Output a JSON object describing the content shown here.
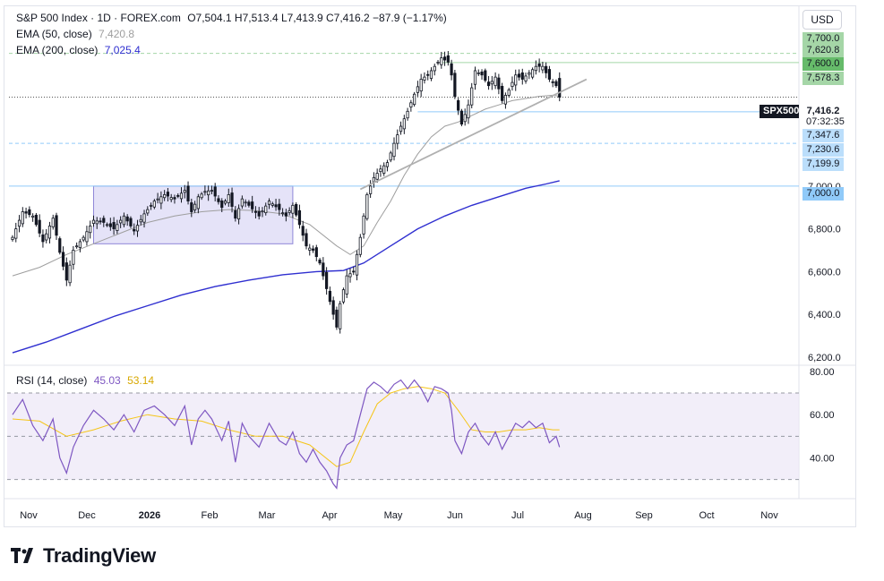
{
  "header": {
    "symbol": "S&P 500 Index · 1D · FOREX.com",
    "ohlc": "O7,504.1  H7,513.4  L7,413.9  C7,416.2  −87.9 (−1.17%)",
    "ema50_label": "EMA (50, close)",
    "ema50_value": "7,420.8",
    "ema200_label": "EMA (200, close)",
    "ema200_value": "7,025.4"
  },
  "currency_button": "USD",
  "colors": {
    "up": "#131722",
    "ema50": "#9e9e9e",
    "ema200": "#2f2fd0",
    "rsi": "#7e57c2",
    "rsi_ma": "#f5c518",
    "support_line": "#90caf9",
    "resistance_line": "#a5d6a7",
    "box_fill": "#dcd9f5"
  },
  "price_tags": [
    {
      "text": "7,700.0",
      "value": 7700,
      "style": "green"
    },
    {
      "text": "7,620.8",
      "value": 7620.8,
      "style": "green"
    },
    {
      "text": "7,600.0",
      "value": 7600,
      "style": "green-strong"
    },
    {
      "text": "7,578.3",
      "value": 7578.3,
      "style": "green"
    },
    {
      "text": "SPX500",
      "value": 7416.2,
      "style": "dark-symbol"
    },
    {
      "text": "7,416.2",
      "value": 7416.2,
      "style": "plain-bold"
    },
    {
      "text": "07:32:35",
      "value": 7380,
      "style": "plain"
    },
    {
      "text": "7,347.6",
      "value": 7347.6,
      "style": "blue"
    },
    {
      "text": "7,230.6",
      "value": 7230.6,
      "style": "blue"
    },
    {
      "text": "7,199.9",
      "value": 7199.9,
      "style": "blue"
    },
    {
      "text": "7,000.0",
      "value": 7000,
      "style": "blue-strong"
    }
  ],
  "rsi_legend": {
    "label": "RSI (14, close)",
    "value": "45.03",
    "ma_value": "53.14"
  },
  "logo_text": "TradingView",
  "chart_data": [
    {
      "type": "candlestick",
      "x_ticks": [
        "Nov",
        "Dec",
        "2026",
        "Feb",
        "Mar",
        "Apr",
        "May",
        "Jun",
        "Jul",
        "Aug",
        "Sep",
        "Oct",
        "Nov"
      ],
      "y_ticks": [
        "6,200.0",
        "6,400.0",
        "6,600.0",
        "6,800.0",
        "7,000.0"
      ],
      "y_tick_values": [
        6200,
        6400,
        6600,
        6800,
        7000
      ],
      "ylim": [
        6170,
        7720
      ],
      "last": {
        "open": 7504.1,
        "high": 7513.4,
        "low": 7413.9,
        "close": 7416.2
      },
      "price_path": [
        [
          0,
          6760
        ],
        [
          3,
          6880
        ],
        [
          6,
          6860
        ],
        [
          9,
          6740
        ],
        [
          12,
          6850
        ],
        [
          14,
          6690
        ],
        [
          16,
          6560
        ],
        [
          18,
          6700
        ],
        [
          21,
          6760
        ],
        [
          24,
          6840
        ],
        [
          27,
          6830
        ],
        [
          30,
          6800
        ],
        [
          33,
          6860
        ],
        [
          36,
          6790
        ],
        [
          39,
          6870
        ],
        [
          42,
          6930
        ],
        [
          45,
          6960
        ],
        [
          48,
          6940
        ],
        [
          51,
          6980
        ],
        [
          53,
          6880
        ],
        [
          55,
          6950
        ],
        [
          57,
          6975
        ],
        [
          59,
          6980
        ],
        [
          62,
          6900
        ],
        [
          64,
          6960
        ],
        [
          66,
          6850
        ],
        [
          68,
          6940
        ],
        [
          70,
          6910
        ],
        [
          73,
          6860
        ],
        [
          76,
          6930
        ],
        [
          79,
          6890
        ],
        [
          81,
          6860
        ],
        [
          83,
          6910
        ],
        [
          85,
          6820
        ],
        [
          87,
          6720
        ],
        [
          89,
          6700
        ],
        [
          91,
          6640
        ],
        [
          93,
          6520
        ],
        [
          95,
          6400
        ],
        [
          96,
          6340
        ],
        [
          97,
          6450
        ],
        [
          99,
          6580
        ],
        [
          101,
          6600
        ],
        [
          103,
          6760
        ],
        [
          105,
          6960
        ],
        [
          107,
          7040
        ],
        [
          109,
          7080
        ],
        [
          111,
          7110
        ],
        [
          113,
          7200
        ],
        [
          115,
          7280
        ],
        [
          117,
          7350
        ],
        [
          119,
          7430
        ],
        [
          121,
          7500
        ],
        [
          123,
          7520
        ],
        [
          125,
          7560
        ],
        [
          127,
          7600
        ],
        [
          129,
          7580
        ],
        [
          130,
          7520
        ],
        [
          131,
          7420
        ],
        [
          133,
          7290
        ],
        [
          135,
          7380
        ],
        [
          137,
          7540
        ],
        [
          139,
          7520
        ],
        [
          141,
          7470
        ],
        [
          143,
          7510
        ],
        [
          145,
          7400
        ],
        [
          147,
          7450
        ],
        [
          149,
          7520
        ],
        [
          151,
          7500
        ],
        [
          153,
          7530
        ],
        [
          155,
          7560
        ],
        [
          157,
          7560
        ],
        [
          159,
          7500
        ],
        [
          161,
          7470
        ],
        [
          162,
          7416
        ]
      ],
      "total_bars": 163,
      "ema50": [
        [
          0,
          6580
        ],
        [
          8,
          6620
        ],
        [
          16,
          6680
        ],
        [
          24,
          6730
        ],
        [
          32,
          6780
        ],
        [
          40,
          6830
        ],
        [
          48,
          6860
        ],
        [
          56,
          6880
        ],
        [
          64,
          6890
        ],
        [
          72,
          6885
        ],
        [
          80,
          6870
        ],
        [
          88,
          6820
        ],
        [
          96,
          6720
        ],
        [
          100,
          6680
        ],
        [
          104,
          6720
        ],
        [
          108,
          6830
        ],
        [
          112,
          6930
        ],
        [
          116,
          7050
        ],
        [
          120,
          7150
        ],
        [
          124,
          7230
        ],
        [
          128,
          7280
        ],
        [
          132,
          7300
        ],
        [
          136,
          7330
        ],
        [
          140,
          7360
        ],
        [
          144,
          7380
        ],
        [
          148,
          7400
        ],
        [
          152,
          7410
        ],
        [
          156,
          7420
        ],
        [
          160,
          7425
        ],
        [
          162,
          7421
        ]
      ],
      "ema200": [
        [
          0,
          6220
        ],
        [
          10,
          6270
        ],
        [
          20,
          6330
        ],
        [
          30,
          6390
        ],
        [
          40,
          6440
        ],
        [
          50,
          6490
        ],
        [
          60,
          6530
        ],
        [
          70,
          6560
        ],
        [
          80,
          6585
        ],
        [
          90,
          6600
        ],
        [
          98,
          6605
        ],
        [
          104,
          6640
        ],
        [
          112,
          6720
        ],
        [
          120,
          6800
        ],
        [
          128,
          6860
        ],
        [
          136,
          6910
        ],
        [
          144,
          6950
        ],
        [
          152,
          6990
        ],
        [
          158,
          7010
        ],
        [
          162,
          7025
        ]
      ],
      "trendline": {
        "from": [
          103,
          6985
        ],
        "to": [
          170,
          7500
        ]
      },
      "consolidation_box": {
        "x_from": 24,
        "x_to": 83,
        "y_from": 6730,
        "y_to": 7000
      },
      "horizontal_levels": [
        {
          "value": 7620.8,
          "kind": "resistance-dashed"
        },
        {
          "value": 7578.3,
          "kind": "resistance"
        },
        {
          "value": 7347.6,
          "kind": "support"
        },
        {
          "value": 7199.9,
          "kind": "support-dashed"
        },
        {
          "value": 7000.0,
          "kind": "support"
        },
        {
          "value": 7416.2,
          "kind": "last-price-dotted"
        }
      ]
    },
    {
      "type": "line",
      "title": "RSI (14, close)",
      "y_ticks": [
        "80.00",
        "60.00",
        "40.00"
      ],
      "y_tick_values": [
        80,
        60,
        40
      ],
      "ylim": [
        22,
        82
      ],
      "band": [
        30,
        70
      ],
      "midline": 50,
      "rsi": [
        [
          0,
          60
        ],
        [
          3,
          67
        ],
        [
          6,
          55
        ],
        [
          9,
          48
        ],
        [
          12,
          58
        ],
        [
          14,
          40
        ],
        [
          16,
          33
        ],
        [
          18,
          45
        ],
        [
          21,
          55
        ],
        [
          24,
          62
        ],
        [
          27,
          58
        ],
        [
          30,
          53
        ],
        [
          33,
          60
        ],
        [
          36,
          52
        ],
        [
          39,
          62
        ],
        [
          42,
          64
        ],
        [
          45,
          60
        ],
        [
          48,
          55
        ],
        [
          51,
          64
        ],
        [
          53,
          46
        ],
        [
          55,
          58
        ],
        [
          57,
          62
        ],
        [
          59,
          58
        ],
        [
          62,
          48
        ],
        [
          64,
          57
        ],
        [
          66,
          38
        ],
        [
          68,
          56
        ],
        [
          70,
          50
        ],
        [
          73,
          45
        ],
        [
          76,
          56
        ],
        [
          79,
          48
        ],
        [
          81,
          46
        ],
        [
          83,
          52
        ],
        [
          85,
          42
        ],
        [
          87,
          38
        ],
        [
          89,
          44
        ],
        [
          91,
          38
        ],
        [
          93,
          34
        ],
        [
          95,
          28
        ],
        [
          96,
          26
        ],
        [
          97,
          40
        ],
        [
          99,
          46
        ],
        [
          101,
          48
        ],
        [
          103,
          60
        ],
        [
          105,
          72
        ],
        [
          107,
          75
        ],
        [
          109,
          73
        ],
        [
          111,
          70
        ],
        [
          113,
          74
        ],
        [
          115,
          76
        ],
        [
          117,
          72
        ],
        [
          119,
          76
        ],
        [
          121,
          72
        ],
        [
          123,
          66
        ],
        [
          125,
          73
        ],
        [
          127,
          72
        ],
        [
          129,
          70
        ],
        [
          130,
          62
        ],
        [
          131,
          48
        ],
        [
          133,
          42
        ],
        [
          135,
          52
        ],
        [
          137,
          56
        ],
        [
          139,
          50
        ],
        [
          141,
          46
        ],
        [
          143,
          52
        ],
        [
          145,
          44
        ],
        [
          147,
          50
        ],
        [
          149,
          56
        ],
        [
          151,
          54
        ],
        [
          153,
          57
        ],
        [
          155,
          54
        ],
        [
          157,
          56
        ],
        [
          159,
          47
        ],
        [
          161,
          50
        ],
        [
          162,
          45
        ]
      ],
      "rsi_ma": [
        [
          0,
          58
        ],
        [
          8,
          57
        ],
        [
          16,
          50
        ],
        [
          24,
          53
        ],
        [
          32,
          57
        ],
        [
          40,
          60
        ],
        [
          48,
          58
        ],
        [
          56,
          57
        ],
        [
          64,
          53
        ],
        [
          72,
          50
        ],
        [
          80,
          50
        ],
        [
          88,
          46
        ],
        [
          96,
          36
        ],
        [
          100,
          38
        ],
        [
          104,
          52
        ],
        [
          108,
          65
        ],
        [
          112,
          70
        ],
        [
          116,
          72
        ],
        [
          120,
          73
        ],
        [
          124,
          72
        ],
        [
          128,
          70
        ],
        [
          132,
          62
        ],
        [
          136,
          53
        ],
        [
          140,
          52
        ],
        [
          144,
          52
        ],
        [
          148,
          53
        ],
        [
          152,
          53
        ],
        [
          156,
          54
        ],
        [
          160,
          53
        ],
        [
          162,
          53
        ]
      ]
    }
  ]
}
